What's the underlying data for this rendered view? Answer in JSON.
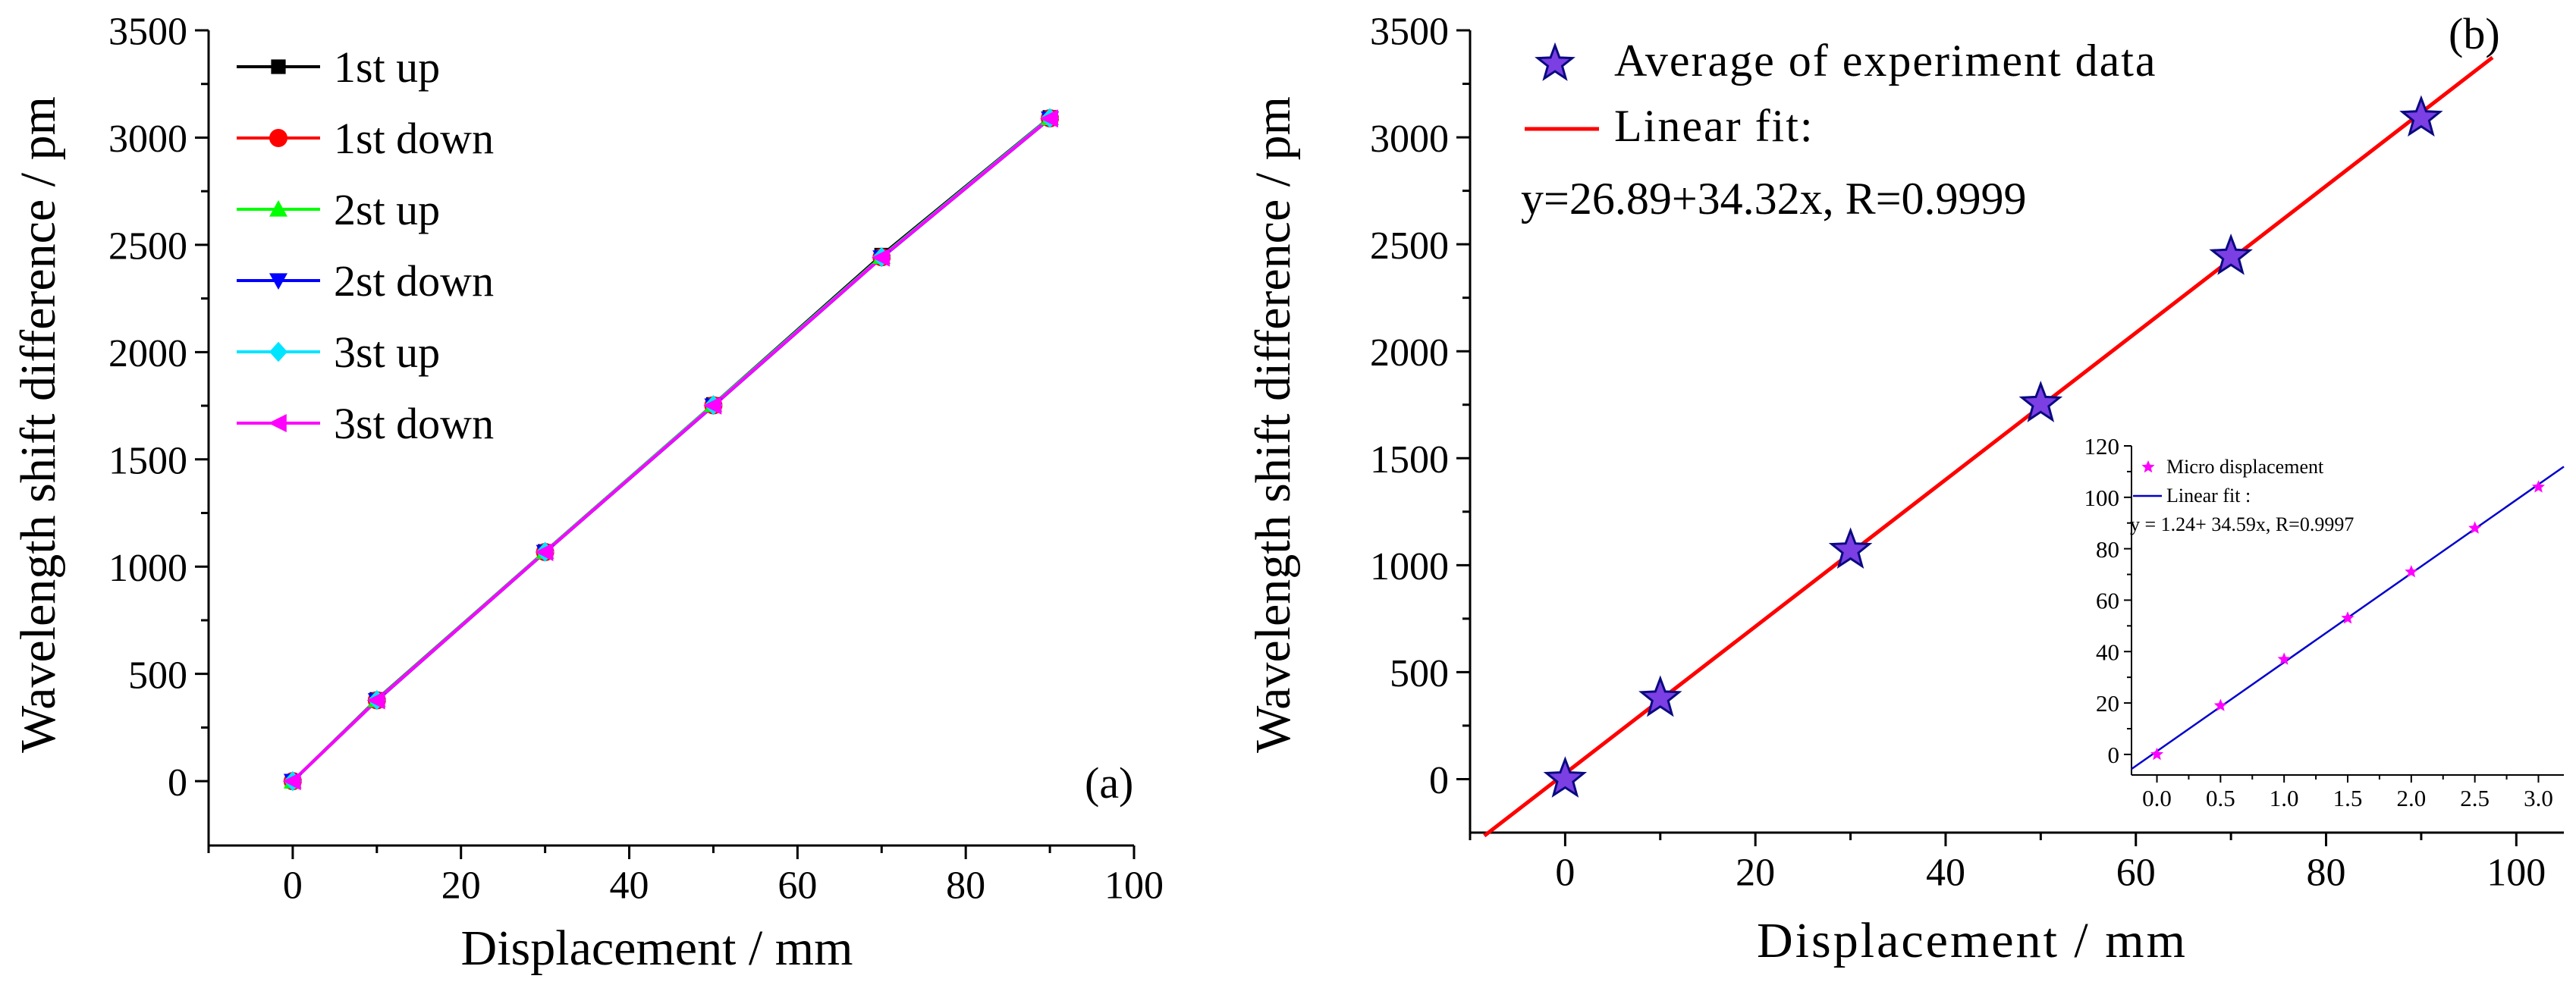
{
  "chart_data": [
    {
      "type": "line",
      "panel_label": "(a)",
      "xlabel": "Displacement / mm",
      "ylabel": "Wavelength shift difference / pm",
      "xlim": [
        -10,
        100
      ],
      "ylim": [
        -300,
        3500
      ],
      "x_ticks": [
        0,
        20,
        40,
        60,
        80,
        100
      ],
      "x_tick_labels": [
        "0",
        "20",
        "40",
        "60",
        "80",
        "100"
      ],
      "y_ticks": [
        0,
        500,
        1000,
        1500,
        2000,
        2500,
        3000,
        3500
      ],
      "y_tick_labels": [
        "0",
        "500",
        "1000",
        "1500",
        "2000",
        "2500",
        "3000",
        "3500"
      ],
      "legend_position": "top-left",
      "x": [
        0,
        10,
        30,
        50,
        70,
        90
      ],
      "series": [
        {
          "name": "1st up",
          "color": "#000000",
          "marker": "square",
          "values": [
            0,
            381,
            1071,
            1756,
            2452,
            3094
          ]
        },
        {
          "name": "1st down",
          "color": "#ff0000",
          "marker": "circle",
          "values": [
            0,
            377,
            1068,
            1752,
            2442,
            3090
          ]
        },
        {
          "name": "2st up",
          "color": "#00ff00",
          "marker": "triangle-up",
          "values": [
            0,
            379,
            1070,
            1755,
            2445,
            3092
          ]
        },
        {
          "name": "2st down",
          "color": "#0000ff",
          "marker": "triangle-down",
          "values": [
            0,
            376,
            1067,
            1750,
            2440,
            3088
          ]
        },
        {
          "name": "3st up",
          "color": "#00e5ff",
          "marker": "diamond",
          "values": [
            0,
            378,
            1069,
            1753,
            2443,
            3091
          ]
        },
        {
          "name": "3st down",
          "color": "#ff00ff",
          "marker": "triangle-left",
          "values": [
            0,
            377,
            1068,
            1751,
            2441,
            3089
          ]
        }
      ]
    },
    {
      "type": "scatter",
      "panel_label": "(b)",
      "xlabel": "Displacement / mm",
      "ylabel": "Wavelength shift difference / pm",
      "xlim": [
        -10,
        105
      ],
      "ylim": [
        -250,
        3500
      ],
      "x_ticks": [
        0,
        20,
        40,
        60,
        80,
        100
      ],
      "x_tick_labels": [
        "0",
        "20",
        "40",
        "60",
        "80",
        "100"
      ],
      "y_ticks": [
        0,
        500,
        1000,
        1500,
        2000,
        2500,
        3000,
        3500
      ],
      "y_tick_labels": [
        "0",
        "500",
        "1000",
        "1500",
        "2000",
        "2500",
        "3000",
        "3500"
      ],
      "legend_position": "top-left",
      "points": {
        "name": "Average of experiment data",
        "x": [
          0,
          10,
          30,
          50,
          70,
          90
        ],
        "y": [
          0,
          378,
          1070,
          1755,
          2443,
          3090
        ],
        "color": "#7b3fe4",
        "edge_color": "#0a0a80",
        "marker": "star"
      },
      "fit": {
        "name": "Linear fit:",
        "equation": "y=26.89+34.32x, R=0.9999",
        "intercept": 26.89,
        "slope": 34.32,
        "x_range": [
          -8.5,
          97.5
        ],
        "color": "#ff0000"
      },
      "inset": {
        "type": "scatter",
        "xlim": [
          -0.2,
          3.2
        ],
        "ylim": [
          -8,
          120
        ],
        "x_ticks": [
          0,
          0.5,
          1,
          1.5,
          2,
          2.5,
          3
        ],
        "x_tick_labels": [
          "0.0",
          "0.5",
          "1.0",
          "1.5",
          "2.0",
          "2.5",
          "3.0"
        ],
        "y_ticks": [
          0,
          20,
          40,
          60,
          80,
          100,
          120
        ],
        "y_tick_labels": [
          "0",
          "20",
          "40",
          "60",
          "80",
          "100",
          "120"
        ],
        "points": {
          "name": "Micro displacement",
          "x": [
            0,
            0.5,
            1,
            1.5,
            2,
            2.5,
            3
          ],
          "y": [
            0,
            19,
            37,
            53,
            71,
            88,
            104
          ],
          "color": "#ff00ff",
          "marker": "star"
        },
        "fit": {
          "name": "Linear fit :",
          "equation": "y = 1.24+ 34.59x, R=0.9997",
          "intercept": 1.24,
          "slope": 34.59,
          "x_range": [
            -0.2,
            3.2
          ],
          "color": "#0000cc"
        }
      }
    }
  ]
}
